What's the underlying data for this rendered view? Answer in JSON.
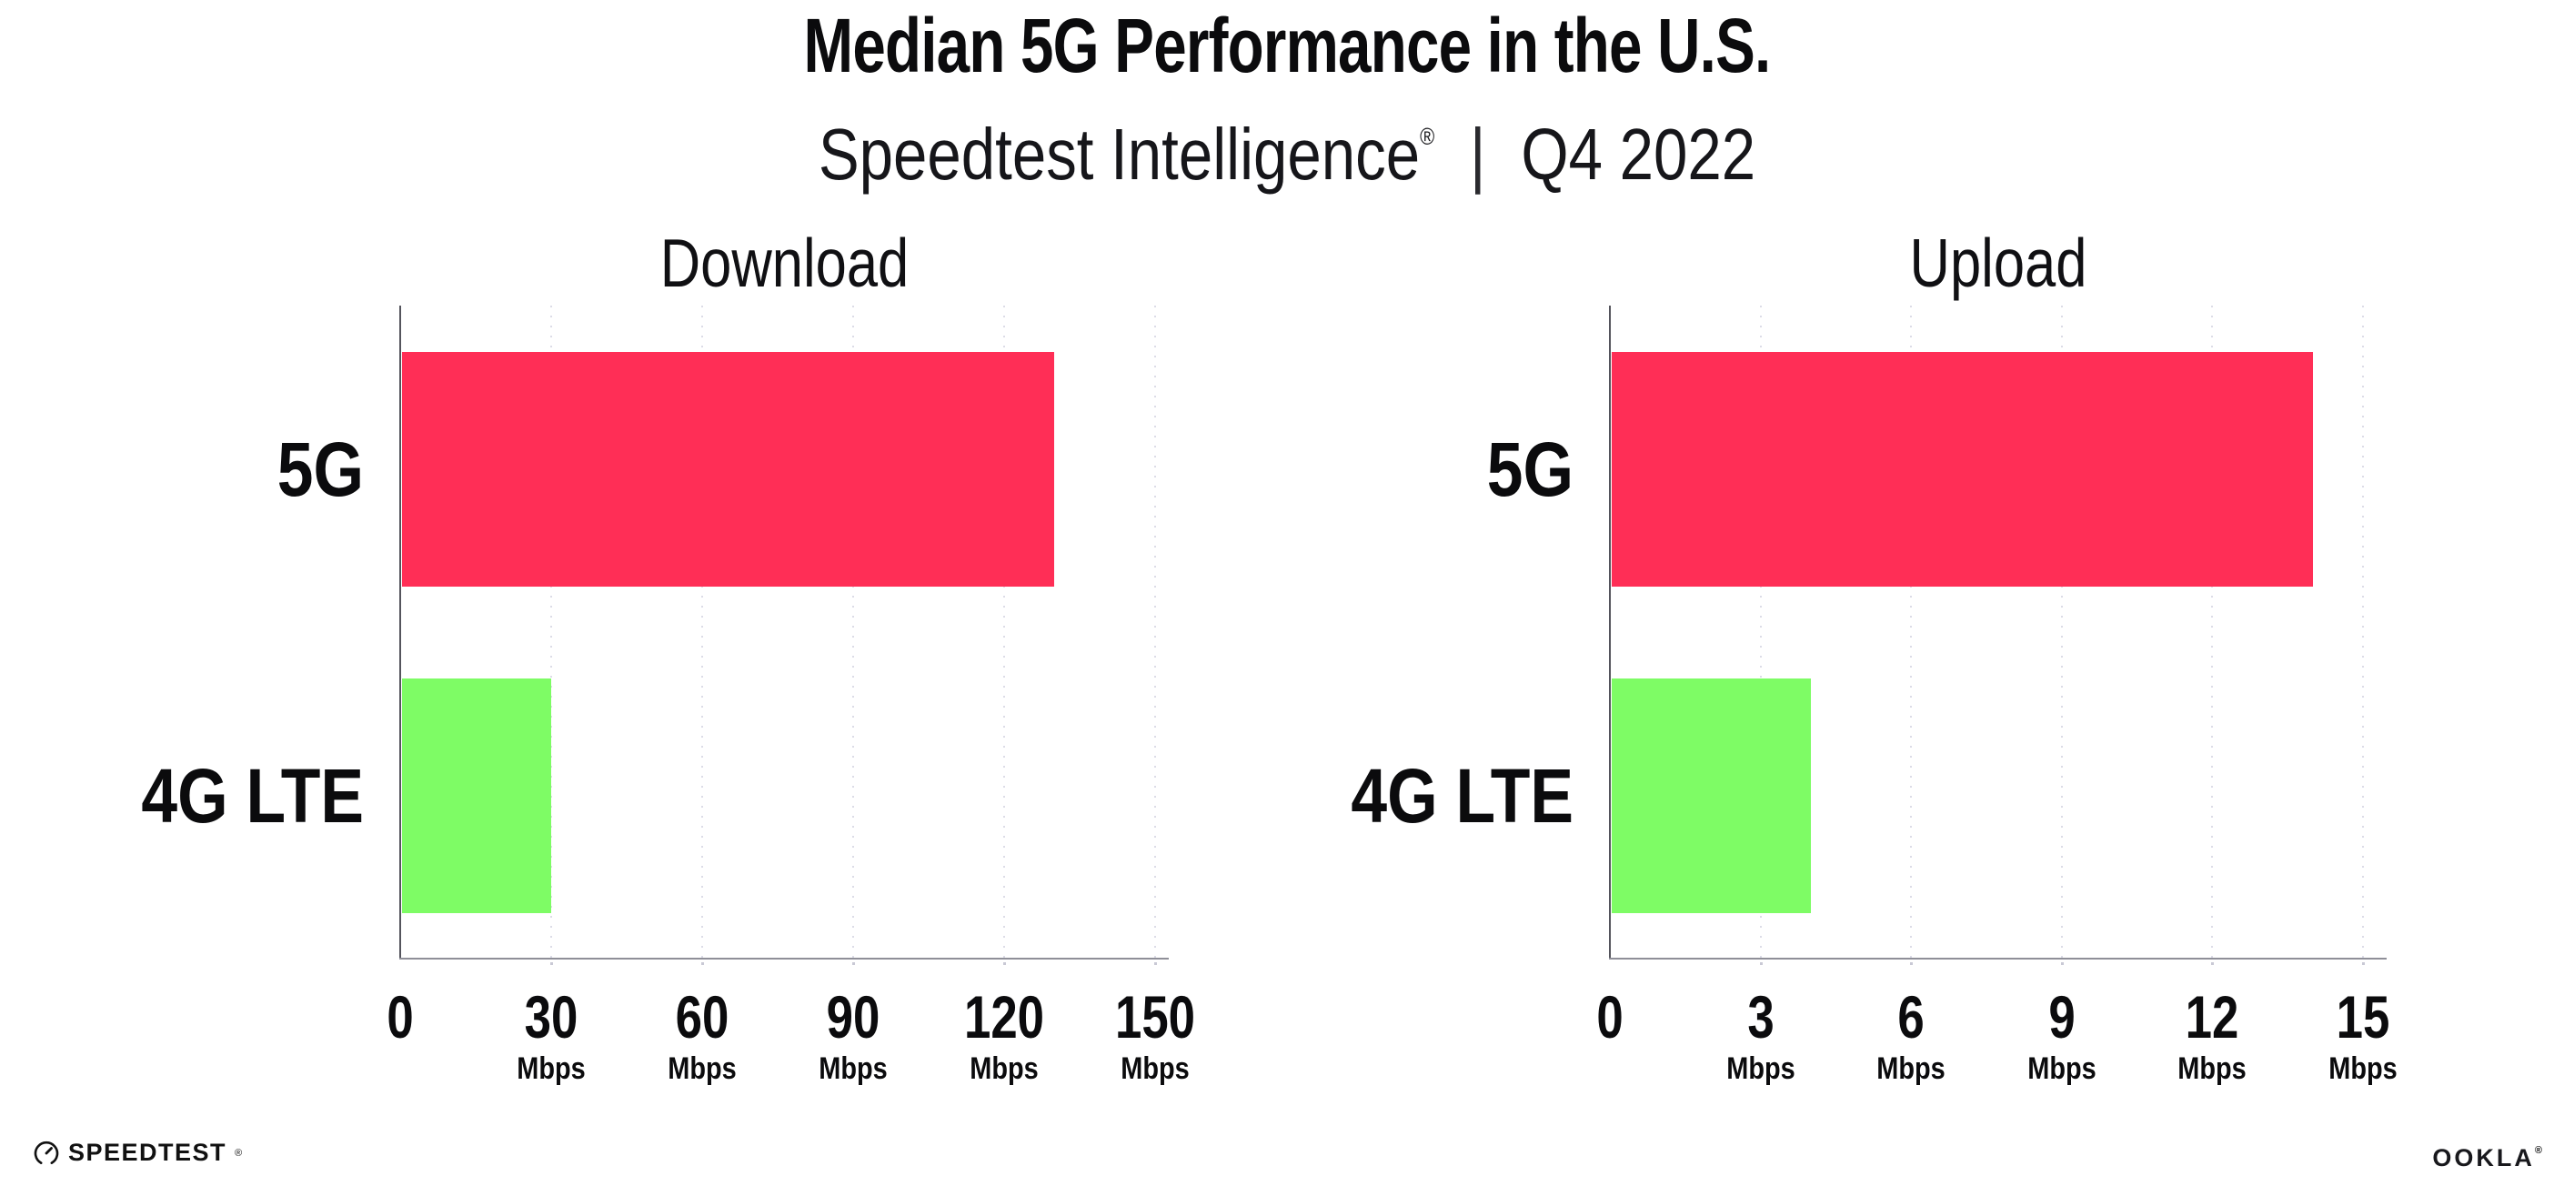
{
  "header": {
    "title": "Median 5G Performance in the U.S.",
    "subtitle_brand": "Speedtest Intelligence",
    "subtitle_reg": "®",
    "subtitle_divider": "|",
    "subtitle_period": "Q4 2022"
  },
  "colors": {
    "bar_5g": "#FF2E56",
    "bar_4g_lte": "#7EFC65",
    "grid": "#DCDCE7",
    "y_axis": "#54545C",
    "x_axis": "#8F8F98",
    "tick_mark": "#C9C9D5",
    "text": "#0B0B0D"
  },
  "chart_data": [
    {
      "type": "bar",
      "orientation": "horizontal",
      "title": "Download",
      "categories": [
        "5G",
        "4G LTE"
      ],
      "values": [
        130,
        30
      ],
      "unit": "Mbps",
      "xlim": [
        0,
        150
      ],
      "xticks": [
        0,
        30,
        60,
        90,
        120,
        150
      ],
      "grid": "vertical-dotted",
      "legend": "none",
      "bar_colors": [
        "#FF2E56",
        "#7EFC65"
      ]
    },
    {
      "type": "bar",
      "orientation": "horizontal",
      "title": "Upload",
      "categories": [
        "5G",
        "4G LTE"
      ],
      "values": [
        14,
        4
      ],
      "unit": "Mbps",
      "xlim": [
        0,
        15
      ],
      "xticks": [
        0,
        3,
        6,
        9,
        12,
        15
      ],
      "grid": "vertical-dotted",
      "legend": "none",
      "bar_colors": [
        "#FF2E56",
        "#7EFC65"
      ]
    }
  ],
  "footer": {
    "speedtest_wordmark": "SPEEDTEST",
    "speedtest_reg": "®",
    "ookla_wordmark": "OOKLA",
    "ookla_reg": "®"
  }
}
